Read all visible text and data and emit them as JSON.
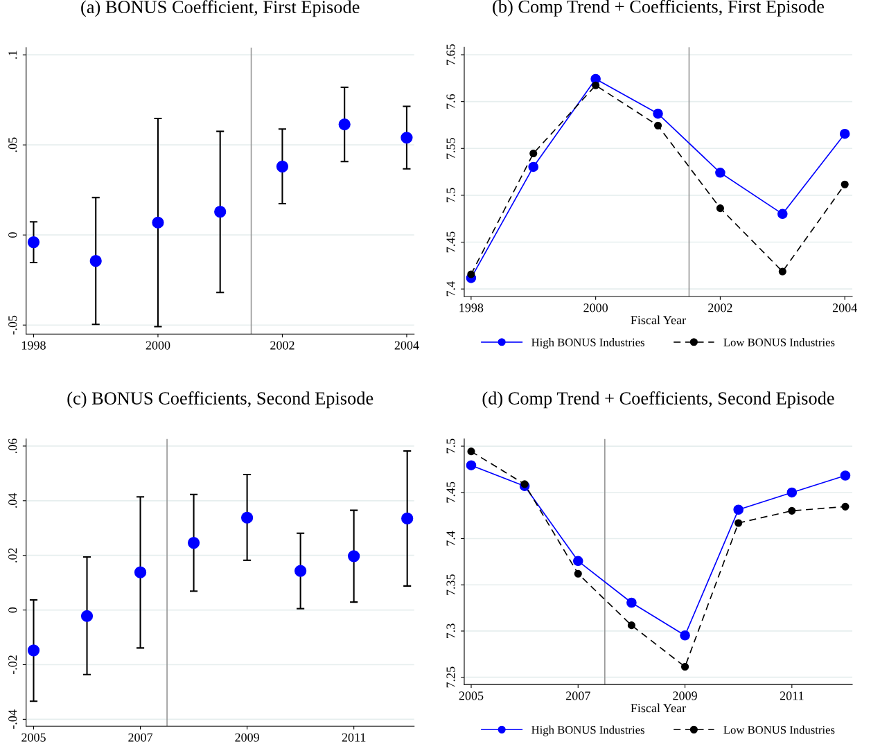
{
  "chart_data": [
    {
      "type": "scatter",
      "title": "(a) BONUS Coefficient, First Episode",
      "x": [
        1998,
        1999,
        2000,
        2001,
        2002,
        2003,
        2004
      ],
      "series": [
        {
          "color": "#0000ff",
          "values": [
            -0.004,
            -0.0144,
            0.0069,
            0.0129,
            0.038,
            0.0614,
            0.054
          ],
          "errors": [
            [
              -0.0153,
              0.0073
            ],
            [
              -0.0496,
              0.0208
            ],
            [
              -0.0509,
              0.0647
            ],
            [
              -0.0319,
              0.0575
            ],
            [
              0.0174,
              0.0588
            ],
            [
              0.0408,
              0.082
            ],
            [
              0.0367,
              0.0714
            ]
          ]
        }
      ],
      "xlim": [
        1997.88,
        2004.12
      ],
      "xticks": [
        1998,
        2000,
        2002,
        2004
      ],
      "ylim": [
        -0.055,
        0.104
      ],
      "yticks": [
        {
          "value": -0.05,
          "label": "-.05"
        },
        {
          "value": 0,
          "label": "0"
        },
        {
          "value": 0.05,
          "label": ".05"
        },
        {
          "value": 0.1,
          "label": ".1"
        }
      ],
      "ref_lines": [
        {
          "axis": "x",
          "value": 2001.5,
          "color": "#999999"
        }
      ],
      "grid": "y",
      "marker": "circle",
      "legend": false
    },
    {
      "type": "line",
      "title": "(b) Comp Trend + Coefficients, First Episode",
      "xlabel": "Fiscal Year",
      "x": [
        1998,
        1999,
        2000,
        2001,
        2002,
        2003,
        2004
      ],
      "series": [
        {
          "name": "High BONUS Industries",
          "color": "#0000ff",
          "line_style": "solid",
          "values": [
            7.4117,
            7.5303,
            7.6242,
            7.5871,
            7.5241,
            7.4801,
            7.5656
          ]
        },
        {
          "name": "Low BONUS Industries",
          "color": "#000000",
          "line_style": "dashed",
          "values": [
            7.4157,
            7.5447,
            7.6173,
            7.5744,
            7.4862,
            7.4186,
            7.5116
          ]
        }
      ],
      "xlim": [
        1997.89,
        2004.12
      ],
      "xticks": [
        1998,
        2000,
        2002,
        2004
      ],
      "ylim": [
        7.392,
        7.658
      ],
      "yticks": [
        7.4,
        7.45,
        7.5,
        7.55,
        7.6,
        7.65
      ],
      "ref_lines": [
        {
          "axis": "x",
          "value": 2001.5,
          "color": "#999999"
        }
      ],
      "grid": "y",
      "marker": "circle",
      "legend": "bottom"
    },
    {
      "type": "scatter",
      "title": "(c) BONUS Coefficients, Second Episode",
      "x": [
        2005,
        2006,
        2007,
        2008,
        2009,
        2010,
        2011,
        2012
      ],
      "series": [
        {
          "color": "#0000ff",
          "values": [
            -0.0148,
            -0.0022,
            0.0138,
            0.0246,
            0.0338,
            0.0143,
            0.0197,
            0.0335
          ],
          "errors": [
            [
              -0.0334,
              0.0037
            ],
            [
              -0.0236,
              0.0194
            ],
            [
              -0.0139,
              0.0414
            ],
            [
              0.0069,
              0.0423
            ],
            [
              0.0182,
              0.0496
            ],
            [
              0.0005,
              0.0281
            ],
            [
              0.0029,
              0.0365
            ],
            [
              0.0088,
              0.0582
            ]
          ]
        }
      ],
      "xlim": [
        2004.86,
        2012.13
      ],
      "xticks": [
        2005,
        2007,
        2009,
        2011
      ],
      "ylim": [
        -0.0425,
        0.0626
      ],
      "yticks": [
        {
          "value": -0.04,
          "label": "-.04"
        },
        {
          "value": -0.02,
          "label": "-.02"
        },
        {
          "value": 0,
          "label": "0"
        },
        {
          "value": 0.02,
          "label": ".02"
        },
        {
          "value": 0.04,
          "label": ".04"
        },
        {
          "value": 0.06,
          "label": ".06"
        }
      ],
      "ref_lines": [
        {
          "axis": "x",
          "value": 2007.5,
          "color": "#999999"
        }
      ],
      "grid": "y",
      "marker": "circle",
      "legend": false
    },
    {
      "type": "line",
      "title": "(d) Comp Trend + Coefficients, Second Episode",
      "xlabel": "Fiscal Year",
      "x": [
        2005,
        2006,
        2007,
        2008,
        2009,
        2010,
        2011,
        2012
      ],
      "series": [
        {
          "name": "High BONUS Industries",
          "color": "#0000ff",
          "line_style": "solid",
          "values": [
            7.4793,
            7.4568,
            7.3758,
            7.3307,
            7.2953,
            7.4313,
            7.4499,
            7.4682
          ]
        },
        {
          "name": "Low BONUS Industries",
          "color": "#000000",
          "line_style": "dashed",
          "values": [
            7.4943,
            7.4589,
            7.362,
            7.3062,
            7.2614,
            7.4169,
            7.4301,
            7.4346
          ]
        }
      ],
      "xlim": [
        2004.87,
        2012.13
      ],
      "xticks": [
        2005,
        2007,
        2009,
        2011
      ],
      "ylim": [
        7.2422,
        7.5078
      ],
      "yticks": [
        7.25,
        7.3,
        7.35,
        7.4,
        7.45,
        7.5
      ],
      "ref_lines": [
        {
          "axis": "x",
          "value": 2007.5,
          "color": "#999999"
        }
      ],
      "grid": "y",
      "marker": "circle",
      "legend": "bottom"
    }
  ]
}
